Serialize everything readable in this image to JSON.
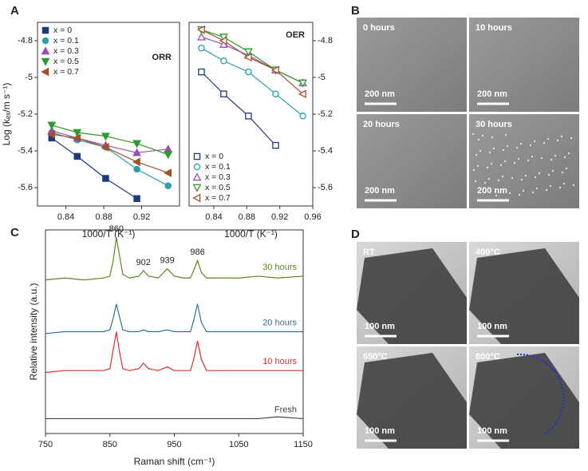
{
  "panel_labels": [
    "A",
    "B",
    "C",
    "D"
  ],
  "chart_data": [
    {
      "type": "scatter",
      "title": "ORR",
      "x_label": "1000/T (K⁻¹)",
      "y_label": "Log (kₑₓ/m s⁻¹)",
      "xlim": [
        0.81,
        0.96
      ],
      "xticks": [
        0.84,
        0.88,
        0.92
      ],
      "ylim": [
        -5.7,
        -4.7
      ],
      "yticks": [
        -4.8,
        -5.0,
        -5.2,
        -5.4,
        -5.6
      ],
      "y_axis_side": "left",
      "legend": "upper left",
      "markers_filled": true,
      "series": [
        {
          "name": "x = 0",
          "color": "#1f3a7a",
          "marker": "square",
          "x": [
            0.825,
            0.852,
            0.882,
            0.915
          ],
          "values": [
            -5.33,
            -5.43,
            -5.55,
            -5.66
          ]
        },
        {
          "name": "x = 0.1",
          "color": "#2aa0a8",
          "marker": "circle",
          "x": [
            0.825,
            0.852,
            0.882,
            0.915,
            0.948
          ],
          "values": [
            -5.3,
            -5.34,
            -5.38,
            -5.5,
            -5.59
          ]
        },
        {
          "name": "x = 0.3",
          "color": "#9a4fb0",
          "marker": "triangle-up",
          "x": [
            0.825,
            0.852,
            0.882,
            0.915,
            0.948
          ],
          "values": [
            -5.29,
            -5.33,
            -5.37,
            -5.41,
            -5.39
          ]
        },
        {
          "name": "x = 0.5",
          "color": "#2e9a2e",
          "marker": "triangle-down",
          "x": [
            0.825,
            0.852,
            0.882,
            0.915,
            0.948
          ],
          "values": [
            -5.26,
            -5.3,
            -5.32,
            -5.36,
            -5.42
          ]
        },
        {
          "name": "x = 0.7",
          "color": "#a0522d",
          "marker": "triangle-left",
          "x": [
            0.825,
            0.852,
            0.882,
            0.915,
            0.948
          ],
          "values": [
            -5.31,
            -5.33,
            -5.38,
            -5.46,
            -5.52
          ]
        }
      ]
    },
    {
      "type": "scatter",
      "title": "OER",
      "x_label": "1000/T (K⁻¹)",
      "xlim": [
        0.81,
        0.96
      ],
      "xticks": [
        0.84,
        0.88,
        0.92,
        0.96
      ],
      "ylim": [
        -5.7,
        -4.7
      ],
      "yticks": [
        -4.8,
        -5.0,
        -5.2,
        -5.4,
        -5.6
      ],
      "y_axis_side": "right",
      "legend": "lower left",
      "markers_filled": false,
      "series": [
        {
          "name": "x = 0",
          "color": "#1f3a7a",
          "marker": "square",
          "x": [
            0.825,
            0.852,
            0.882,
            0.915
          ],
          "values": [
            -4.97,
            -5.09,
            -5.21,
            -5.37
          ]
        },
        {
          "name": "x = 0.1",
          "color": "#2aa0a8",
          "marker": "circle",
          "x": [
            0.825,
            0.852,
            0.882,
            0.915,
            0.948
          ],
          "values": [
            -4.84,
            -4.91,
            -4.97,
            -5.09,
            -5.21
          ]
        },
        {
          "name": "x = 0.3",
          "color": "#9a4fb0",
          "marker": "triangle-up",
          "x": [
            0.825,
            0.852,
            0.882,
            0.915,
            0.948
          ],
          "values": [
            -4.78,
            -4.82,
            -4.88,
            -4.96,
            -5.03
          ]
        },
        {
          "name": "x = 0.5",
          "color": "#2e9a2e",
          "marker": "triangle-down",
          "x": [
            0.825,
            0.852,
            0.882,
            0.915,
            0.948
          ],
          "values": [
            -4.74,
            -4.78,
            -4.86,
            -4.96,
            -5.03
          ]
        },
        {
          "name": "x = 0.7",
          "color": "#a0522d",
          "marker": "triangle-left",
          "x": [
            0.825,
            0.852,
            0.882,
            0.915,
            0.948
          ],
          "values": [
            -4.74,
            -4.8,
            -4.89,
            -4.96,
            -5.09
          ]
        }
      ]
    },
    {
      "type": "line",
      "x_label": "Raman shift (cm⁻¹)",
      "y_label": "Relative intensity (a.u.)",
      "xlim": [
        750,
        1150
      ],
      "xticks": [
        750,
        850,
        950,
        1050,
        1150
      ],
      "ylim": [
        0,
        11
      ],
      "x": [
        750,
        780,
        810,
        840,
        850,
        855,
        860,
        865,
        870,
        880,
        895,
        902,
        910,
        925,
        939,
        950,
        965,
        975,
        980,
        986,
        992,
        1000,
        1020,
        1050,
        1080,
        1110,
        1150
      ],
      "annotations": [
        {
          "text": "860",
          "x": 860
        },
        {
          "text": "902",
          "x": 902
        },
        {
          "text": "939",
          "x": 939
        },
        {
          "text": "986",
          "x": 986
        }
      ],
      "series": [
        {
          "name": "30 hours",
          "color": "#5a8a1e",
          "values": [
            8.3,
            8.4,
            8.3,
            8.4,
            8.5,
            9.3,
            10.6,
            9.6,
            8.6,
            8.4,
            8.5,
            8.8,
            8.5,
            8.4,
            8.9,
            8.5,
            8.4,
            8.4,
            8.8,
            9.35,
            8.7,
            8.4,
            8.4,
            8.4,
            8.5,
            8.4,
            8.5
          ]
        },
        {
          "name": "20 hours",
          "color": "#2f6fa0",
          "values": [
            5.4,
            5.5,
            5.5,
            5.5,
            5.6,
            6.2,
            7.0,
            6.3,
            5.6,
            5.5,
            5.5,
            5.6,
            5.5,
            5.5,
            5.6,
            5.5,
            5.5,
            5.5,
            6.1,
            7.0,
            6.0,
            5.5,
            5.5,
            5.5,
            5.5,
            5.5,
            5.5
          ]
        },
        {
          "name": "10 hours",
          "color": "#d93030",
          "values": [
            3.3,
            3.4,
            3.4,
            3.4,
            3.5,
            4.5,
            5.5,
            4.4,
            3.5,
            3.4,
            3.5,
            3.8,
            3.5,
            3.4,
            3.6,
            3.4,
            3.4,
            3.4,
            4.0,
            5.0,
            4.0,
            3.4,
            3.4,
            3.4,
            3.4,
            3.4,
            3.4
          ]
        },
        {
          "name": "Fresh",
          "color": "#444444",
          "values": [
            0.8,
            0.8,
            0.8,
            0.8,
            0.8,
            0.8,
            0.8,
            0.8,
            0.8,
            0.8,
            0.8,
            0.8,
            0.8,
            0.8,
            0.8,
            0.8,
            0.8,
            0.8,
            0.8,
            0.8,
            0.8,
            0.8,
            0.8,
            0.8,
            0.8,
            0.9,
            0.8
          ]
        }
      ]
    }
  ],
  "micrographs": [
    {
      "kind": "SEM",
      "images": [
        {
          "caption": "0 hours",
          "scale_bar": "200 nm"
        },
        {
          "caption": "10 hours",
          "scale_bar": "200 nm"
        },
        {
          "caption": "20 hours",
          "scale_bar": "200 nm"
        },
        {
          "caption": "30 hours",
          "scale_bar": "200 nm"
        }
      ]
    },
    {
      "kind": "TEM",
      "images": [
        {
          "caption": "RT",
          "scale_bar": "100 nm"
        },
        {
          "caption": "400°C",
          "scale_bar": "100 nm"
        },
        {
          "caption": "650°C",
          "scale_bar": "100 nm"
        },
        {
          "caption": "800°C",
          "scale_bar": "100 nm"
        }
      ]
    }
  ]
}
